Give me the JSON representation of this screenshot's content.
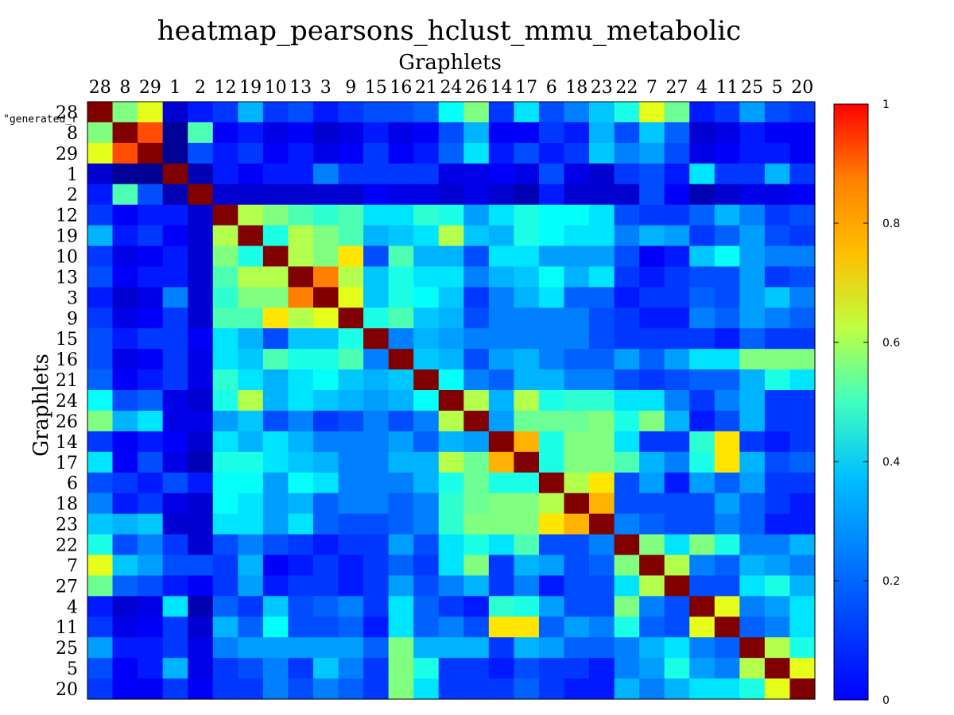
{
  "chart_data": {
    "type": "heatmap",
    "title": "heatmap_pearsons_hclust_mmu_metabolic",
    "xlabel": "Graphlets",
    "ylabel": "Graphlets",
    "labels": [
      "28",
      "8",
      "29",
      "1",
      "2",
      "12",
      "19",
      "10",
      "13",
      "3",
      "9",
      "15",
      "16",
      "21",
      "24",
      "26",
      "14",
      "17",
      "6",
      "18",
      "23",
      "22",
      "7",
      "27",
      "4",
      "11",
      "25",
      "5",
      "20"
    ],
    "values": [
      [
        1.0,
        0.5,
        0.6,
        0.08,
        0.15,
        0.18,
        0.3,
        0.18,
        0.2,
        0.15,
        0.18,
        0.2,
        0.2,
        0.22,
        0.38,
        0.5,
        0.18,
        0.35,
        0.2,
        0.25,
        0.32,
        0.4,
        0.6,
        0.48,
        0.15,
        0.18,
        0.28,
        0.2,
        0.18
      ],
      [
        0.5,
        1.0,
        0.8,
        0.02,
        0.45,
        0.12,
        0.15,
        0.1,
        0.12,
        0.08,
        0.1,
        0.15,
        0.1,
        0.12,
        0.2,
        0.3,
        0.12,
        0.12,
        0.18,
        0.15,
        0.3,
        0.2,
        0.32,
        0.22,
        0.08,
        0.1,
        0.15,
        0.12,
        0.12
      ],
      [
        0.6,
        0.8,
        1.0,
        0.02,
        0.2,
        0.15,
        0.18,
        0.12,
        0.15,
        0.1,
        0.12,
        0.18,
        0.12,
        0.15,
        0.22,
        0.35,
        0.15,
        0.2,
        0.15,
        0.18,
        0.32,
        0.25,
        0.28,
        0.2,
        0.1,
        0.12,
        0.15,
        0.15,
        0.12
      ],
      [
        0.08,
        0.02,
        0.02,
        1.0,
        0.05,
        0.15,
        0.12,
        0.15,
        0.15,
        0.25,
        0.18,
        0.18,
        0.18,
        0.18,
        0.1,
        0.1,
        0.12,
        0.1,
        0.2,
        0.1,
        0.08,
        0.18,
        0.2,
        0.15,
        0.35,
        0.18,
        0.18,
        0.3,
        0.18
      ],
      [
        0.15,
        0.45,
        0.2,
        0.05,
        1.0,
        0.08,
        0.08,
        0.08,
        0.08,
        0.08,
        0.08,
        0.12,
        0.1,
        0.1,
        0.08,
        0.1,
        0.08,
        0.05,
        0.15,
        0.08,
        0.08,
        0.08,
        0.2,
        0.12,
        0.05,
        0.08,
        0.1,
        0.1,
        0.12
      ],
      [
        0.18,
        0.12,
        0.15,
        0.15,
        0.08,
        1.0,
        0.55,
        0.5,
        0.45,
        0.42,
        0.45,
        0.35,
        0.35,
        0.42,
        0.4,
        0.28,
        0.35,
        0.4,
        0.38,
        0.38,
        0.35,
        0.2,
        0.18,
        0.18,
        0.22,
        0.3,
        0.25,
        0.18,
        0.2
      ],
      [
        0.3,
        0.15,
        0.18,
        0.12,
        0.08,
        0.55,
        1.0,
        0.4,
        0.55,
        0.5,
        0.45,
        0.3,
        0.32,
        0.35,
        0.55,
        0.32,
        0.3,
        0.4,
        0.38,
        0.35,
        0.35,
        0.25,
        0.3,
        0.28,
        0.18,
        0.22,
        0.28,
        0.2,
        0.18
      ],
      [
        0.18,
        0.1,
        0.12,
        0.15,
        0.08,
        0.5,
        0.4,
        1.0,
        0.55,
        0.5,
        0.65,
        0.2,
        0.45,
        0.3,
        0.3,
        0.2,
        0.35,
        0.35,
        0.28,
        0.28,
        0.28,
        0.2,
        0.12,
        0.15,
        0.32,
        0.38,
        0.28,
        0.25,
        0.25
      ],
      [
        0.2,
        0.12,
        0.15,
        0.15,
        0.08,
        0.45,
        0.55,
        0.55,
        1.0,
        0.75,
        0.55,
        0.32,
        0.4,
        0.35,
        0.35,
        0.25,
        0.3,
        0.32,
        0.38,
        0.3,
        0.35,
        0.18,
        0.15,
        0.18,
        0.2,
        0.2,
        0.28,
        0.18,
        0.2
      ],
      [
        0.15,
        0.08,
        0.1,
        0.25,
        0.08,
        0.42,
        0.5,
        0.5,
        0.75,
        1.0,
        0.6,
        0.32,
        0.4,
        0.38,
        0.32,
        0.18,
        0.25,
        0.3,
        0.35,
        0.22,
        0.22,
        0.15,
        0.18,
        0.18,
        0.22,
        0.2,
        0.28,
        0.32,
        0.25
      ],
      [
        0.18,
        0.1,
        0.12,
        0.18,
        0.08,
        0.45,
        0.45,
        0.65,
        0.55,
        0.6,
        1.0,
        0.4,
        0.45,
        0.32,
        0.3,
        0.2,
        0.25,
        0.25,
        0.25,
        0.25,
        0.2,
        0.18,
        0.15,
        0.15,
        0.25,
        0.22,
        0.28,
        0.25,
        0.22
      ],
      [
        0.2,
        0.15,
        0.18,
        0.18,
        0.12,
        0.35,
        0.3,
        0.2,
        0.32,
        0.32,
        0.4,
        1.0,
        0.25,
        0.3,
        0.28,
        0.25,
        0.25,
        0.25,
        0.25,
        0.25,
        0.2,
        0.18,
        0.18,
        0.18,
        0.18,
        0.15,
        0.22,
        0.18,
        0.18
      ],
      [
        0.2,
        0.1,
        0.12,
        0.18,
        0.1,
        0.35,
        0.32,
        0.45,
        0.4,
        0.4,
        0.45,
        0.25,
        1.0,
        0.32,
        0.3,
        0.2,
        0.28,
        0.3,
        0.25,
        0.22,
        0.22,
        0.28,
        0.22,
        0.28,
        0.35,
        0.35,
        0.5,
        0.5,
        0.5
      ],
      [
        0.22,
        0.12,
        0.15,
        0.18,
        0.1,
        0.42,
        0.35,
        0.3,
        0.35,
        0.38,
        0.32,
        0.3,
        0.32,
        1.0,
        0.38,
        0.25,
        0.22,
        0.3,
        0.3,
        0.25,
        0.25,
        0.2,
        0.18,
        0.2,
        0.22,
        0.22,
        0.3,
        0.4,
        0.35
      ],
      [
        0.38,
        0.2,
        0.22,
        0.1,
        0.08,
        0.4,
        0.55,
        0.3,
        0.35,
        0.32,
        0.3,
        0.28,
        0.3,
        0.38,
        1.0,
        0.55,
        0.3,
        0.55,
        0.4,
        0.42,
        0.42,
        0.35,
        0.35,
        0.25,
        0.18,
        0.25,
        0.3,
        0.18,
        0.18
      ],
      [
        0.5,
        0.3,
        0.35,
        0.1,
        0.1,
        0.28,
        0.32,
        0.2,
        0.25,
        0.18,
        0.2,
        0.25,
        0.2,
        0.25,
        0.55,
        1.0,
        0.28,
        0.48,
        0.48,
        0.48,
        0.5,
        0.4,
        0.5,
        0.3,
        0.15,
        0.2,
        0.3,
        0.18,
        0.18
      ],
      [
        0.18,
        0.12,
        0.15,
        0.12,
        0.08,
        0.35,
        0.3,
        0.35,
        0.3,
        0.25,
        0.25,
        0.25,
        0.28,
        0.22,
        0.3,
        0.28,
        1.0,
        0.7,
        0.4,
        0.5,
        0.5,
        0.35,
        0.18,
        0.18,
        0.42,
        0.65,
        0.18,
        0.15,
        0.18
      ],
      [
        0.35,
        0.12,
        0.2,
        0.1,
        0.05,
        0.4,
        0.4,
        0.35,
        0.32,
        0.3,
        0.25,
        0.25,
        0.3,
        0.3,
        0.55,
        0.48,
        0.7,
        1.0,
        0.4,
        0.5,
        0.5,
        0.45,
        0.3,
        0.25,
        0.4,
        0.65,
        0.3,
        0.2,
        0.22
      ],
      [
        0.2,
        0.18,
        0.15,
        0.2,
        0.15,
        0.38,
        0.38,
        0.28,
        0.38,
        0.35,
        0.25,
        0.25,
        0.25,
        0.3,
        0.4,
        0.48,
        0.4,
        0.4,
        1.0,
        0.55,
        0.65,
        0.2,
        0.28,
        0.15,
        0.28,
        0.22,
        0.28,
        0.18,
        0.18
      ],
      [
        0.25,
        0.15,
        0.18,
        0.1,
        0.08,
        0.38,
        0.35,
        0.28,
        0.3,
        0.22,
        0.25,
        0.25,
        0.22,
        0.25,
        0.42,
        0.48,
        0.5,
        0.5,
        0.55,
        1.0,
        0.7,
        0.2,
        0.2,
        0.2,
        0.2,
        0.28,
        0.22,
        0.18,
        0.15
      ],
      [
        0.32,
        0.3,
        0.32,
        0.08,
        0.08,
        0.35,
        0.35,
        0.28,
        0.35,
        0.22,
        0.2,
        0.2,
        0.22,
        0.25,
        0.42,
        0.5,
        0.5,
        0.5,
        0.65,
        0.7,
        1.0,
        0.25,
        0.22,
        0.2,
        0.2,
        0.25,
        0.22,
        0.15,
        0.15
      ],
      [
        0.4,
        0.2,
        0.25,
        0.18,
        0.08,
        0.2,
        0.25,
        0.2,
        0.18,
        0.15,
        0.18,
        0.18,
        0.28,
        0.2,
        0.35,
        0.4,
        0.35,
        0.45,
        0.2,
        0.2,
        0.25,
        1.0,
        0.5,
        0.35,
        0.5,
        0.4,
        0.25,
        0.25,
        0.3
      ],
      [
        0.6,
        0.32,
        0.28,
        0.2,
        0.2,
        0.18,
        0.3,
        0.12,
        0.15,
        0.18,
        0.15,
        0.18,
        0.22,
        0.18,
        0.35,
        0.5,
        0.18,
        0.3,
        0.28,
        0.2,
        0.22,
        0.5,
        1.0,
        0.55,
        0.25,
        0.22,
        0.3,
        0.28,
        0.25
      ],
      [
        0.48,
        0.22,
        0.2,
        0.15,
        0.12,
        0.18,
        0.28,
        0.15,
        0.18,
        0.18,
        0.15,
        0.18,
        0.28,
        0.2,
        0.25,
        0.3,
        0.18,
        0.25,
        0.15,
        0.2,
        0.2,
        0.35,
        0.55,
        1.0,
        0.2,
        0.2,
        0.35,
        0.4,
        0.3
      ],
      [
        0.15,
        0.08,
        0.1,
        0.35,
        0.05,
        0.22,
        0.18,
        0.32,
        0.2,
        0.22,
        0.25,
        0.18,
        0.35,
        0.22,
        0.18,
        0.15,
        0.42,
        0.4,
        0.28,
        0.2,
        0.2,
        0.5,
        0.25,
        0.2,
        1.0,
        0.6,
        0.25,
        0.28,
        0.35
      ],
      [
        0.18,
        0.1,
        0.12,
        0.18,
        0.08,
        0.3,
        0.22,
        0.38,
        0.2,
        0.2,
        0.22,
        0.15,
        0.35,
        0.22,
        0.25,
        0.2,
        0.65,
        0.65,
        0.22,
        0.28,
        0.25,
        0.4,
        0.22,
        0.2,
        0.6,
        1.0,
        0.22,
        0.25,
        0.35
      ],
      [
        0.28,
        0.15,
        0.15,
        0.18,
        0.1,
        0.25,
        0.28,
        0.28,
        0.28,
        0.28,
        0.28,
        0.22,
        0.5,
        0.3,
        0.3,
        0.3,
        0.18,
        0.3,
        0.28,
        0.22,
        0.22,
        0.25,
        0.3,
        0.35,
        0.25,
        0.22,
        1.0,
        0.55,
        0.4
      ],
      [
        0.2,
        0.12,
        0.15,
        0.3,
        0.1,
        0.18,
        0.2,
        0.25,
        0.18,
        0.32,
        0.25,
        0.18,
        0.5,
        0.4,
        0.18,
        0.18,
        0.15,
        0.2,
        0.18,
        0.18,
        0.15,
        0.25,
        0.28,
        0.4,
        0.28,
        0.25,
        0.55,
        1.0,
        0.6
      ],
      [
        0.18,
        0.12,
        0.12,
        0.18,
        0.12,
        0.18,
        0.18,
        0.25,
        0.2,
        0.25,
        0.22,
        0.18,
        0.5,
        0.35,
        0.18,
        0.18,
        0.18,
        0.22,
        0.18,
        0.15,
        0.15,
        0.3,
        0.25,
        0.3,
        0.35,
        0.35,
        0.4,
        0.6,
        1.0
      ]
    ],
    "zlim": [
      0,
      1
    ],
    "colorbar_ticks": [
      "0",
      "0.2",
      "0.4",
      "0.6",
      "0.8",
      "1"
    ],
    "colormap": "jet",
    "legend_entry": "\"generated_r"
  }
}
